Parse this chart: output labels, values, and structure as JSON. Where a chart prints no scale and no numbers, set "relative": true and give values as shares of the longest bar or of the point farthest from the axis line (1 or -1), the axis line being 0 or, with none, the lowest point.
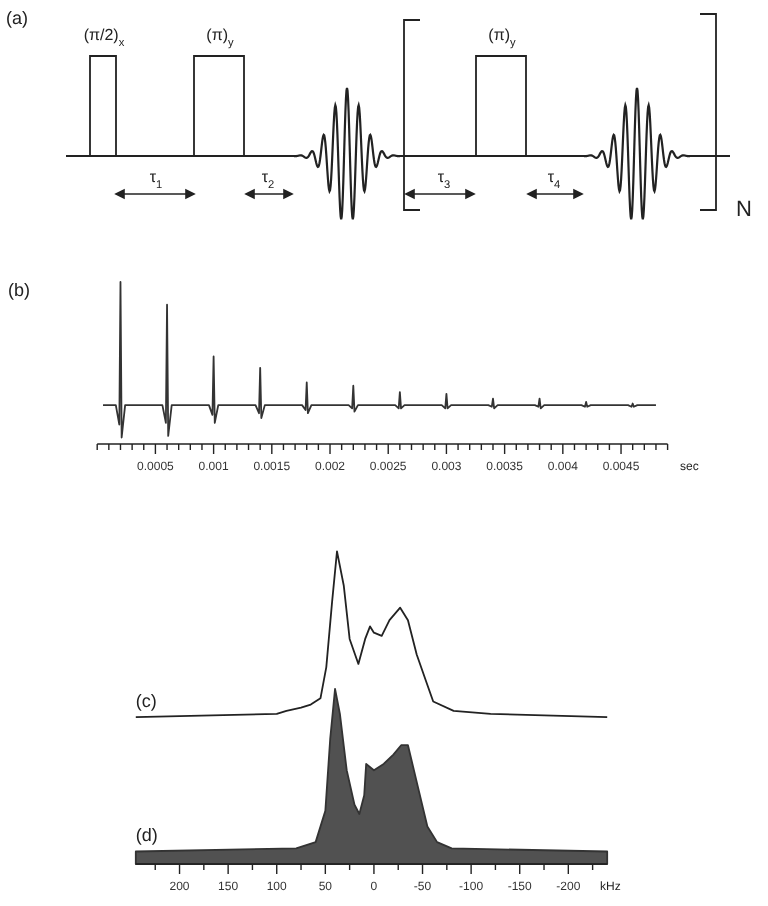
{
  "chart_data": [
    {
      "type": "other",
      "title": "(a)",
      "annotations": [
        "(π/2)$_{x}$",
        "(π)$_{y}$",
        "(π)$_{y}$",
        "τ$_{1}$",
        "τ$_{2}$",
        "τ$_{3}$",
        "τ$_{4}$",
        "N"
      ]
    },
    {
      "type": "line",
      "title": "(b)",
      "xlabel": "sec",
      "relative": true,
      "xlim": [
        0,
        0.0049
      ],
      "xticks": [
        {
          "value": 0,
          "label": null
        },
        {
          "value": 0.0001,
          "label": null
        },
        {
          "value": 0.0002,
          "label": null
        },
        {
          "value": 0.0003,
          "label": null
        },
        {
          "value": 0.0004,
          "label": null
        },
        0.0005,
        {
          "value": 0.0006,
          "label": null
        },
        {
          "value": 0.0007,
          "label": null
        },
        {
          "value": 0.0008,
          "label": null
        },
        {
          "value": 0.0009,
          "label": null
        },
        0.001,
        {
          "value": 0.0011,
          "label": null
        },
        {
          "value": 0.0012,
          "label": null
        },
        {
          "value": 0.0013,
          "label": null
        },
        {
          "value": 0.0014,
          "label": null
        },
        0.0015,
        {
          "value": 0.0016,
          "label": null
        },
        {
          "value": 0.0017,
          "label": null
        },
        {
          "value": 0.0018,
          "label": null
        },
        {
          "value": 0.0019,
          "label": null
        },
        0.002,
        {
          "value": 0.0021,
          "label": null
        },
        {
          "value": 0.0022,
          "label": null
        },
        {
          "value": 0.0023,
          "label": null
        },
        {
          "value": 0.0024,
          "label": null
        },
        0.0025,
        {
          "value": 0.0026,
          "label": null
        },
        {
          "value": 0.0027,
          "label": null
        },
        {
          "value": 0.0028,
          "label": null
        },
        {
          "value": 0.0029,
          "label": null
        },
        0.003,
        {
          "value": 0.0031,
          "label": null
        },
        {
          "value": 0.0032,
          "label": null
        },
        {
          "value": 0.0033,
          "label": null
        },
        {
          "value": 0.0034,
          "label": null
        },
        0.0035,
        {
          "value": 0.0036,
          "label": null
        },
        {
          "value": 0.0037,
          "label": null
        },
        {
          "value": 0.0038,
          "label": null
        },
        {
          "value": 0.0039,
          "label": null
        },
        0.004,
        {
          "value": 0.0041,
          "label": null
        },
        {
          "value": 0.0042,
          "label": null
        },
        {
          "value": 0.0043,
          "label": null
        },
        {
          "value": 0.0044,
          "label": null
        },
        0.0045,
        {
          "value": 0.0046,
          "label": null
        },
        {
          "value": 0.0047,
          "label": null
        },
        {
          "value": 0.0048,
          "label": null
        },
        {
          "value": 0.0049,
          "label": null
        }
      ],
      "x": [
        5e-05,
        0.00016,
        0.00019,
        0.0002,
        0.00021,
        0.00024,
        0.00056,
        0.00059,
        0.0006,
        0.00061,
        0.00064,
        0.00096,
        0.00099,
        0.001,
        0.00101,
        0.00104,
        0.00136,
        0.00139,
        0.0014,
        0.00141,
        0.00144,
        0.00176,
        0.00179,
        0.0018,
        0.00181,
        0.00184,
        0.00216,
        0.00219,
        0.0022,
        0.00221,
        0.00224,
        0.00256,
        0.00259,
        0.0026,
        0.00261,
        0.00264,
        0.00296,
        0.00299,
        0.003,
        0.00301,
        0.00304,
        0.00336,
        0.00339,
        0.0034,
        0.00341,
        0.00344,
        0.00376,
        0.00379,
        0.0038,
        0.00381,
        0.00384,
        0.00416,
        0.00419,
        0.0042,
        0.00421,
        0.00424,
        0.00456,
        0.00459,
        0.0046,
        0.00461,
        0.00464,
        0.0048
      ],
      "series": [
        {
          "color": "#333333",
          "values": [
            0.24,
            0.24,
            0.12,
            1,
            0.04,
            0.24,
            0.24,
            0.13,
            0.86,
            0.05,
            0.24,
            0.24,
            0.18,
            0.54,
            0.13,
            0.24,
            0.24,
            0.19,
            0.47,
            0.16,
            0.24,
            0.24,
            0.21,
            0.38,
            0.19,
            0.24,
            0.24,
            0.22,
            0.36,
            0.2,
            0.24,
            0.24,
            0.22,
            0.32,
            0.22,
            0.24,
            0.24,
            0.22,
            0.31,
            0.22,
            0.24,
            0.24,
            0.23,
            0.28,
            0.22,
            0.24,
            0.24,
            0.23,
            0.28,
            0.22,
            0.24,
            0.24,
            0.23,
            0.26,
            0.23,
            0.24,
            0.24,
            0.23,
            0.25,
            0.23,
            0.24,
            0.24
          ]
        }
      ]
    },
    {
      "type": "line",
      "xlabel": "kHz",
      "relative": true,
      "xlim": [
        245,
        -240
      ],
      "xticks": [
        {
          "value": 225,
          "label": null
        },
        200,
        {
          "value": 175,
          "label": null
        },
        150,
        {
          "value": 125,
          "label": null
        },
        100,
        {
          "value": 75,
          "label": null
        },
        50,
        {
          "value": 25,
          "label": null
        },
        0,
        {
          "value": -25,
          "label": null
        },
        -50,
        {
          "value": -75,
          "label": null
        },
        -100,
        {
          "value": -125,
          "label": null
        },
        -150,
        {
          "value": -175,
          "label": null
        },
        -200,
        {
          "value": -225,
          "label": null
        }
      ],
      "series": [
        {
          "name": "(c)",
          "type": "line",
          "color": "#222222",
          "x": [
            245,
            100,
            90,
            75,
            65,
            55,
            49,
            43,
            38,
            31,
            25,
            16,
            9,
            4,
            0,
            -8,
            -16,
            -27,
            -35,
            -44,
            -53,
            -61,
            -82,
            -120,
            -240
          ],
          "values": [
            0.47,
            0.48,
            0.49,
            0.5,
            0.51,
            0.53,
            0.63,
            0.84,
            1,
            0.89,
            0.72,
            0.64,
            0.72,
            0.76,
            0.74,
            0.73,
            0.78,
            0.82,
            0.78,
            0.67,
            0.59,
            0.52,
            0.49,
            0.48,
            0.47
          ]
        },
        {
          "name": "(d)",
          "type": "area",
          "color": "#333333",
          "x": [
            245,
            80,
            60,
            50,
            45,
            40,
            35,
            28,
            20,
            15,
            10,
            8,
            0,
            -10,
            -20,
            -28,
            -35,
            -45,
            -55,
            -65,
            -80,
            -240
          ],
          "values": [
            0.04,
            0.05,
            0.07,
            0.17,
            0.4,
            0.56,
            0.48,
            0.3,
            0.19,
            0.16,
            0.22,
            0.32,
            0.3,
            0.32,
            0.35,
            0.38,
            0.38,
            0.25,
            0.12,
            0.07,
            0.05,
            0.04
          ]
        }
      ]
    }
  ]
}
